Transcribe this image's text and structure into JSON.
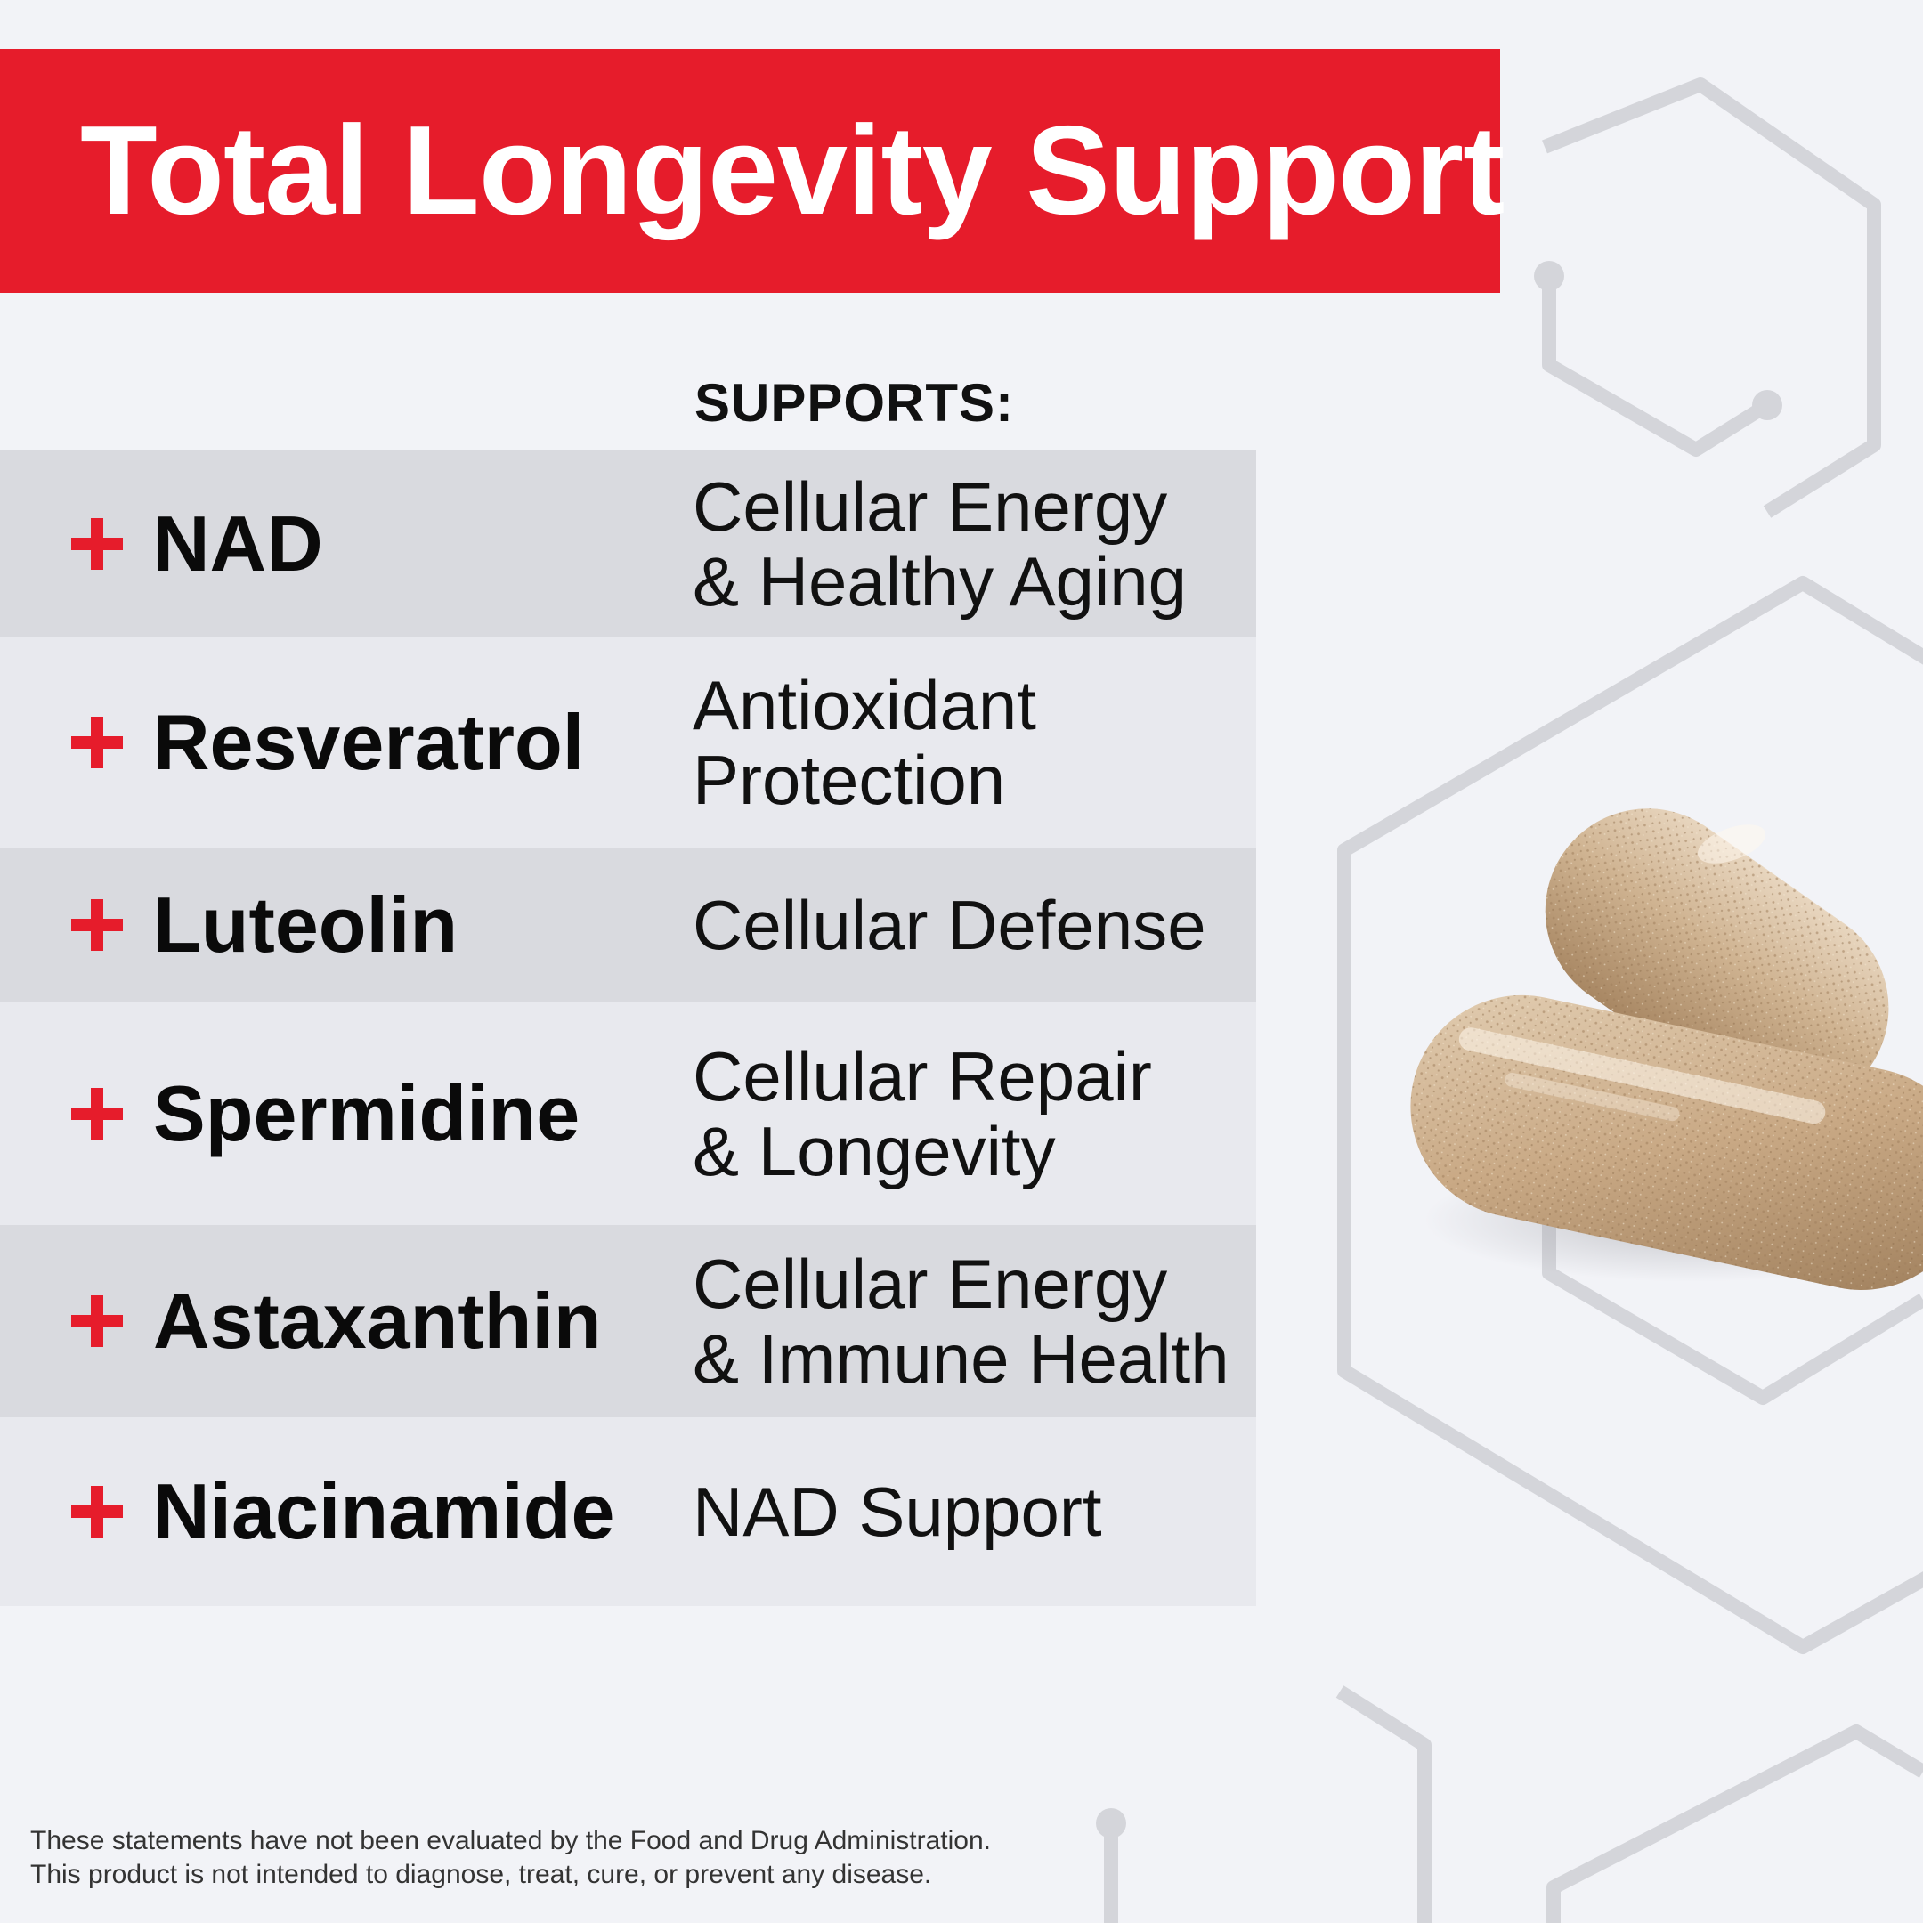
{
  "title": "Total Longevity Support",
  "supports_heading": "SUPPORTS:",
  "ingredients": [
    {
      "name": "NAD",
      "support": "Cellular Energy\n& Healthy Aging"
    },
    {
      "name": "Resveratrol",
      "support": "Antioxidant\nProtection"
    },
    {
      "name": "Luteolin",
      "support": "Cellular Defense"
    },
    {
      "name": "Spermidine",
      "support": "Cellular Repair\n& Longevity"
    },
    {
      "name": "Astaxanthin",
      "support": "Cellular Energy\n& Immune Health"
    },
    {
      "name": "Niacinamide",
      "support": "NAD Support"
    }
  ],
  "disclaimer": {
    "line1": "These statements have not been evaluated by the Food and Drug Administration.",
    "line2": "This product is not intended to diagnose, treat, cure, or prevent any disease."
  },
  "colors": {
    "accent": "#e61c2b",
    "background": "#f2f3f7",
    "row_dark": "#d9dadf",
    "row_light": "#e8e9ee"
  },
  "icons": {
    "bullet": "plus-icon",
    "background": "molecule-hexagon-pattern",
    "product": "capsule-image"
  }
}
